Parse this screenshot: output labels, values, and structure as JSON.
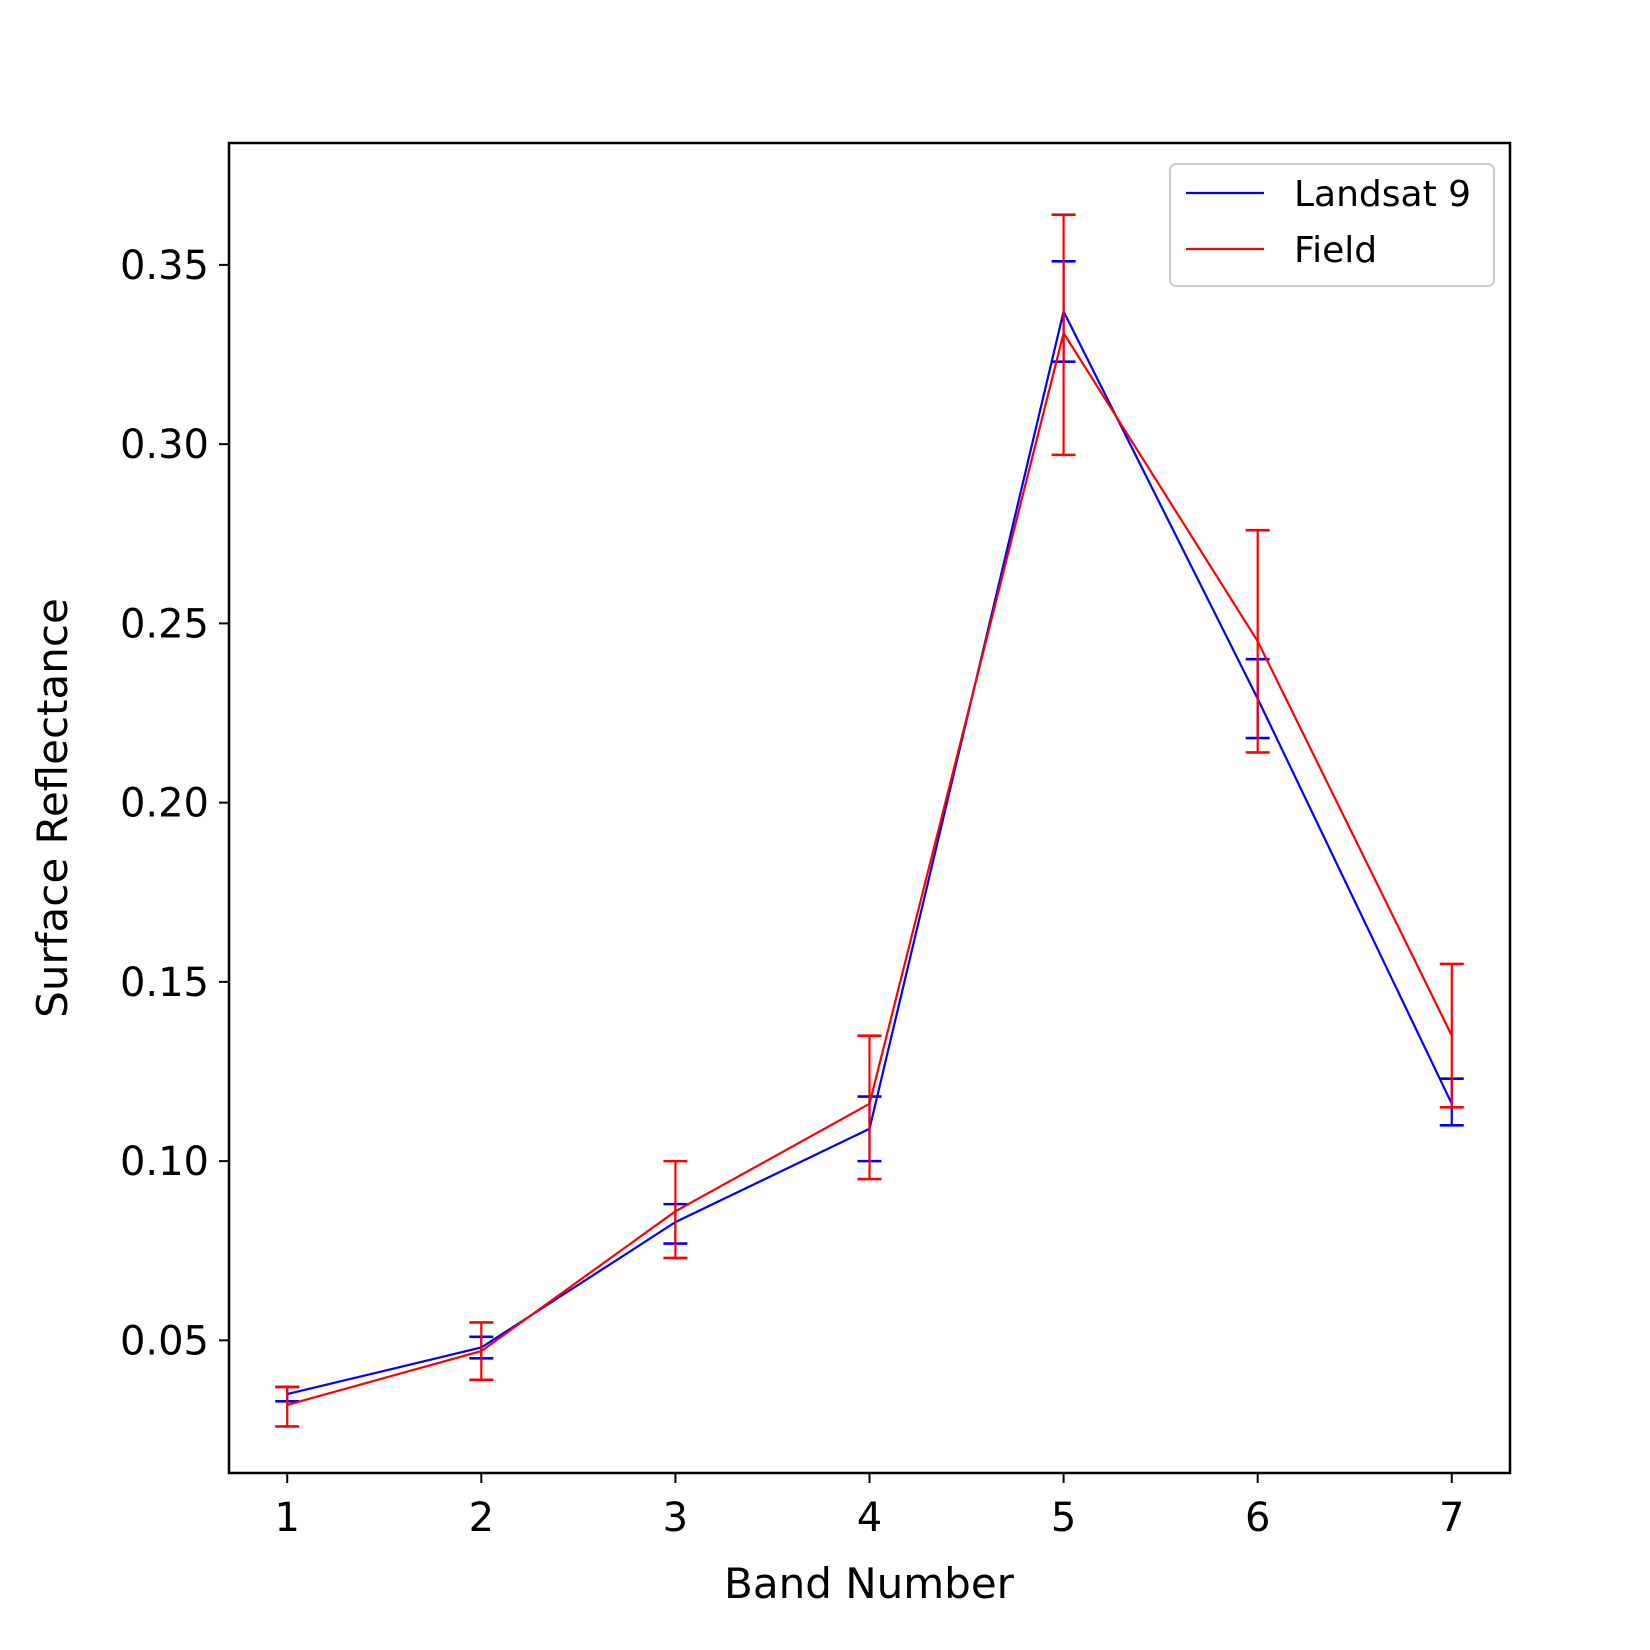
{
  "chart_data": {
    "type": "line",
    "xlabel": "Band Number",
    "ylabel": "Surface Reflectance",
    "x": [
      1,
      2,
      3,
      4,
      5,
      6,
      7
    ],
    "xticks": [
      "1",
      "2",
      "3",
      "4",
      "5",
      "6",
      "7"
    ],
    "xlim": [
      0.7,
      7.3
    ],
    "ylim": [
      0.013,
      0.384
    ],
    "yticks": [
      "0.05",
      "0.10",
      "0.15",
      "0.20",
      "0.25",
      "0.30",
      "0.35"
    ],
    "grid": false,
    "legend_position": "top-right",
    "series": [
      {
        "name": "Landsat 9",
        "color": "#0000ff",
        "values": [
          0.035,
          0.048,
          0.083,
          0.109,
          0.337,
          0.229,
          0.116
        ],
        "err_low": [
          0.033,
          0.045,
          0.077,
          0.1,
          0.323,
          0.218,
          0.11
        ],
        "err_high": [
          0.037,
          0.051,
          0.088,
          0.118,
          0.351,
          0.24,
          0.123
        ]
      },
      {
        "name": "Field",
        "color": "#ff0000",
        "values": [
          0.032,
          0.047,
          0.086,
          0.116,
          0.331,
          0.245,
          0.135
        ],
        "err_low": [
          0.026,
          0.039,
          0.073,
          0.095,
          0.297,
          0.214,
          0.115
        ],
        "err_high": [
          0.037,
          0.055,
          0.1,
          0.135,
          0.364,
          0.276,
          0.155
        ]
      }
    ]
  }
}
